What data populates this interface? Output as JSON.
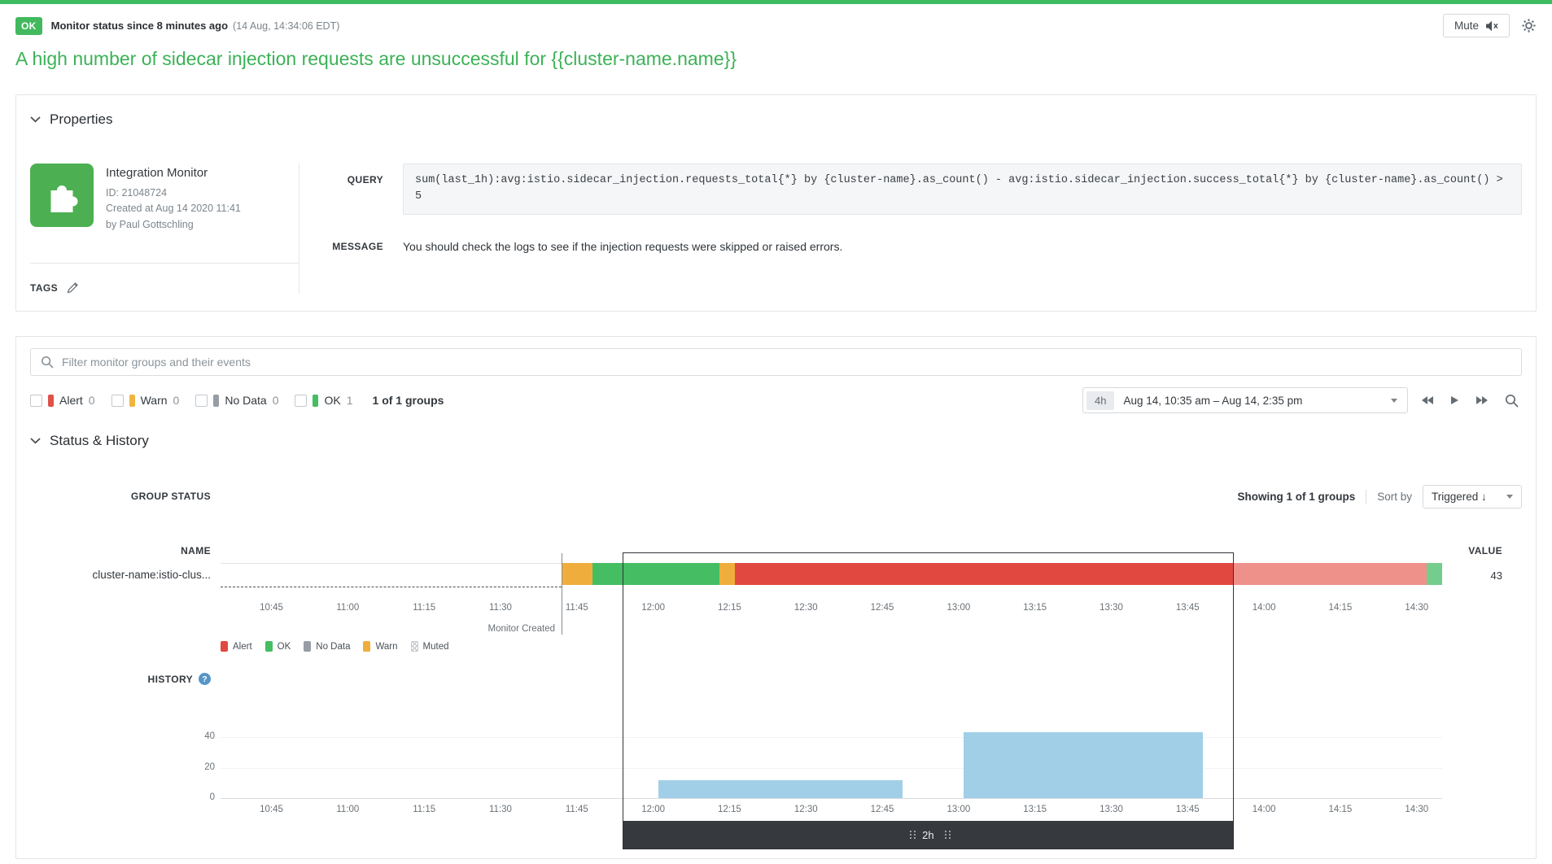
{
  "colors": {
    "top_bar": "#3dbd5f",
    "status_ok": "#42b95e",
    "title": "#3cb257",
    "monitor_icon": "#4cb052"
  },
  "header": {
    "status_badge": "OK",
    "status_text": "Monitor status since 8 minutes ago",
    "status_time": "(14 Aug, 14:34:06 EDT)",
    "mute_label": "Mute",
    "title": "A high number of sidecar injection requests are unsuccessful for {{cluster-name.name}}"
  },
  "properties": {
    "section_title": "Properties",
    "monitor_type": "Integration Monitor",
    "monitor_id": "ID: 21048724",
    "created": "Created at Aug 14 2020 11:41",
    "author": "by Paul Gottschling",
    "tags_label": "TAGS",
    "query_label": "QUERY",
    "query": "sum(last_1h):avg:istio.sidecar_injection.requests_total{*} by {cluster-name}.as_count() - avg:istio.sidecar_injection.success_total{*} by {cluster-name}.as_count() > 5",
    "message_label": "MESSAGE",
    "message": "You should check the logs to see if the injection requests were skipped or raised errors."
  },
  "filter_bar": {
    "search_placeholder": "Filter monitor groups and their events",
    "filters": [
      {
        "label": "Alert",
        "count": "0",
        "color": "#e0514a"
      },
      {
        "label": "Warn",
        "count": "0",
        "color": "#f0b43e"
      },
      {
        "label": "No Data",
        "count": "0",
        "color": "#969da4"
      },
      {
        "label": "OK",
        "count": "1",
        "color": "#45bd63"
      }
    ],
    "groups_summary": "1 of 1 groups",
    "time_span": "4h",
    "time_range": "Aug 14, 10:35 am – Aug 14, 2:35 pm"
  },
  "status_history": {
    "section_title": "Status & History",
    "group_status_label": "GROUP STATUS",
    "showing": "Showing 1 of 1 groups",
    "sort_by_label": "Sort by",
    "sort_value": "Triggered ↓",
    "name_header": "NAME",
    "value_header": "VALUE",
    "monitor_created_label": "Monitor Created",
    "help_glyph": "?",
    "history_label": "HISTORY",
    "legend": [
      {
        "label": "Alert",
        "color": "#e14840"
      },
      {
        "label": "OK",
        "color": "#45bd63"
      },
      {
        "label": "No Data",
        "color": "#969da4"
      },
      {
        "label": "Warn",
        "color": "#efae3c"
      },
      {
        "label": "Muted",
        "color": "#ffffff"
      }
    ]
  },
  "chart_data": [
    {
      "type": "status-timeline",
      "title": "Group status timeline",
      "x_range": [
        "10:35",
        "14:35"
      ],
      "ticks": [
        "10:45",
        "11:00",
        "11:15",
        "11:30",
        "11:45",
        "12:00",
        "12:15",
        "12:30",
        "12:45",
        "13:00",
        "13:15",
        "13:30",
        "13:45",
        "14:00",
        "14:15",
        "14:30"
      ],
      "segments": [
        {
          "from": "10:35",
          "to": "11:42",
          "status": "no-monitor",
          "color": "transparent"
        },
        {
          "from": "11:42",
          "to": "11:48",
          "status": "warn",
          "color": "#efae3c"
        },
        {
          "from": "11:48",
          "to": "12:13",
          "status": "ok",
          "color": "#45bd63"
        },
        {
          "from": "12:13",
          "to": "12:16",
          "status": "warn",
          "color": "#efae3c"
        },
        {
          "from": "12:16",
          "to": "13:54",
          "status": "alert",
          "color": "#e14840"
        },
        {
          "from": "13:54",
          "to": "14:32",
          "status": "alert-dimmed",
          "color": "#ee918b"
        },
        {
          "from": "14:32",
          "to": "14:35",
          "status": "ok-dimmed",
          "color": "#74cd8c"
        }
      ],
      "monitor_created_at": "11:42",
      "row": {
        "name": "cluster-name:istio-clus...",
        "value": 43
      },
      "selection": {
        "from": "11:54",
        "to": "13:54",
        "label": "2h"
      }
    },
    {
      "type": "bar",
      "title": "History",
      "x_range": [
        "10:35",
        "14:35"
      ],
      "ticks": [
        "10:45",
        "11:00",
        "11:15",
        "11:30",
        "11:45",
        "12:00",
        "12:15",
        "12:30",
        "12:45",
        "13:00",
        "13:15",
        "13:30",
        "13:45",
        "14:00",
        "14:15",
        "14:30"
      ],
      "y_ticks": [
        0,
        20,
        40
      ],
      "ylim": [
        0,
        45
      ],
      "bars": [
        {
          "from": "12:01",
          "to": "12:49",
          "value": 12
        },
        {
          "from": "13:01",
          "to": "13:48",
          "value": 43
        }
      ],
      "bar_color": "#a1cfe8"
    }
  ]
}
